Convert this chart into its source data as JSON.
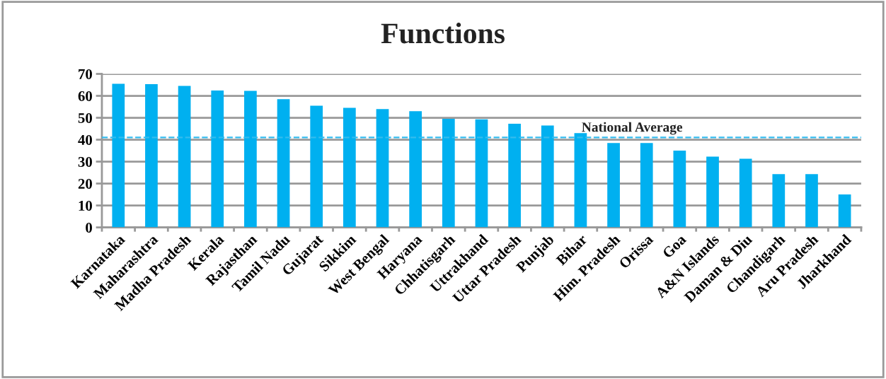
{
  "chart_data": {
    "type": "bar",
    "title": "Functions",
    "categories": [
      "Karnataka",
      "Maharashtra",
      "Madha Pradesh",
      "Kerala",
      "Rajasthan",
      "Tamil Nadu",
      "Gujarat",
      "Sikkim",
      "West Bengal",
      "Haryana",
      "Chhatisgarh",
      "Uttrakhand",
      "Uttar Pradesh",
      "Punjab",
      "Bihar",
      "Him. Pradesh",
      "Orissa",
      "Goa",
      "A&N Islands",
      "Daman & Diu",
      "Chandigarh",
      "Aru Pradesh",
      "Jharkhand"
    ],
    "values": [
      65.5,
      65.3,
      64.5,
      62.4,
      62.3,
      58.5,
      55.5,
      54.5,
      54,
      53,
      49.5,
      49.3,
      47.3,
      46.5,
      43,
      38.5,
      38.5,
      35,
      32.3,
      31.3,
      24.3,
      24.3,
      15
    ],
    "color": "#00b0f0",
    "ylim": [
      0,
      70
    ],
    "yticks": [
      0,
      10,
      20,
      30,
      40,
      50,
      60,
      70
    ],
    "grid": "y",
    "ref_lines": [
      {
        "axis": "y",
        "value": 41,
        "label": "National Average",
        "color": "#33bbee",
        "line_style": "dashed"
      }
    ]
  }
}
